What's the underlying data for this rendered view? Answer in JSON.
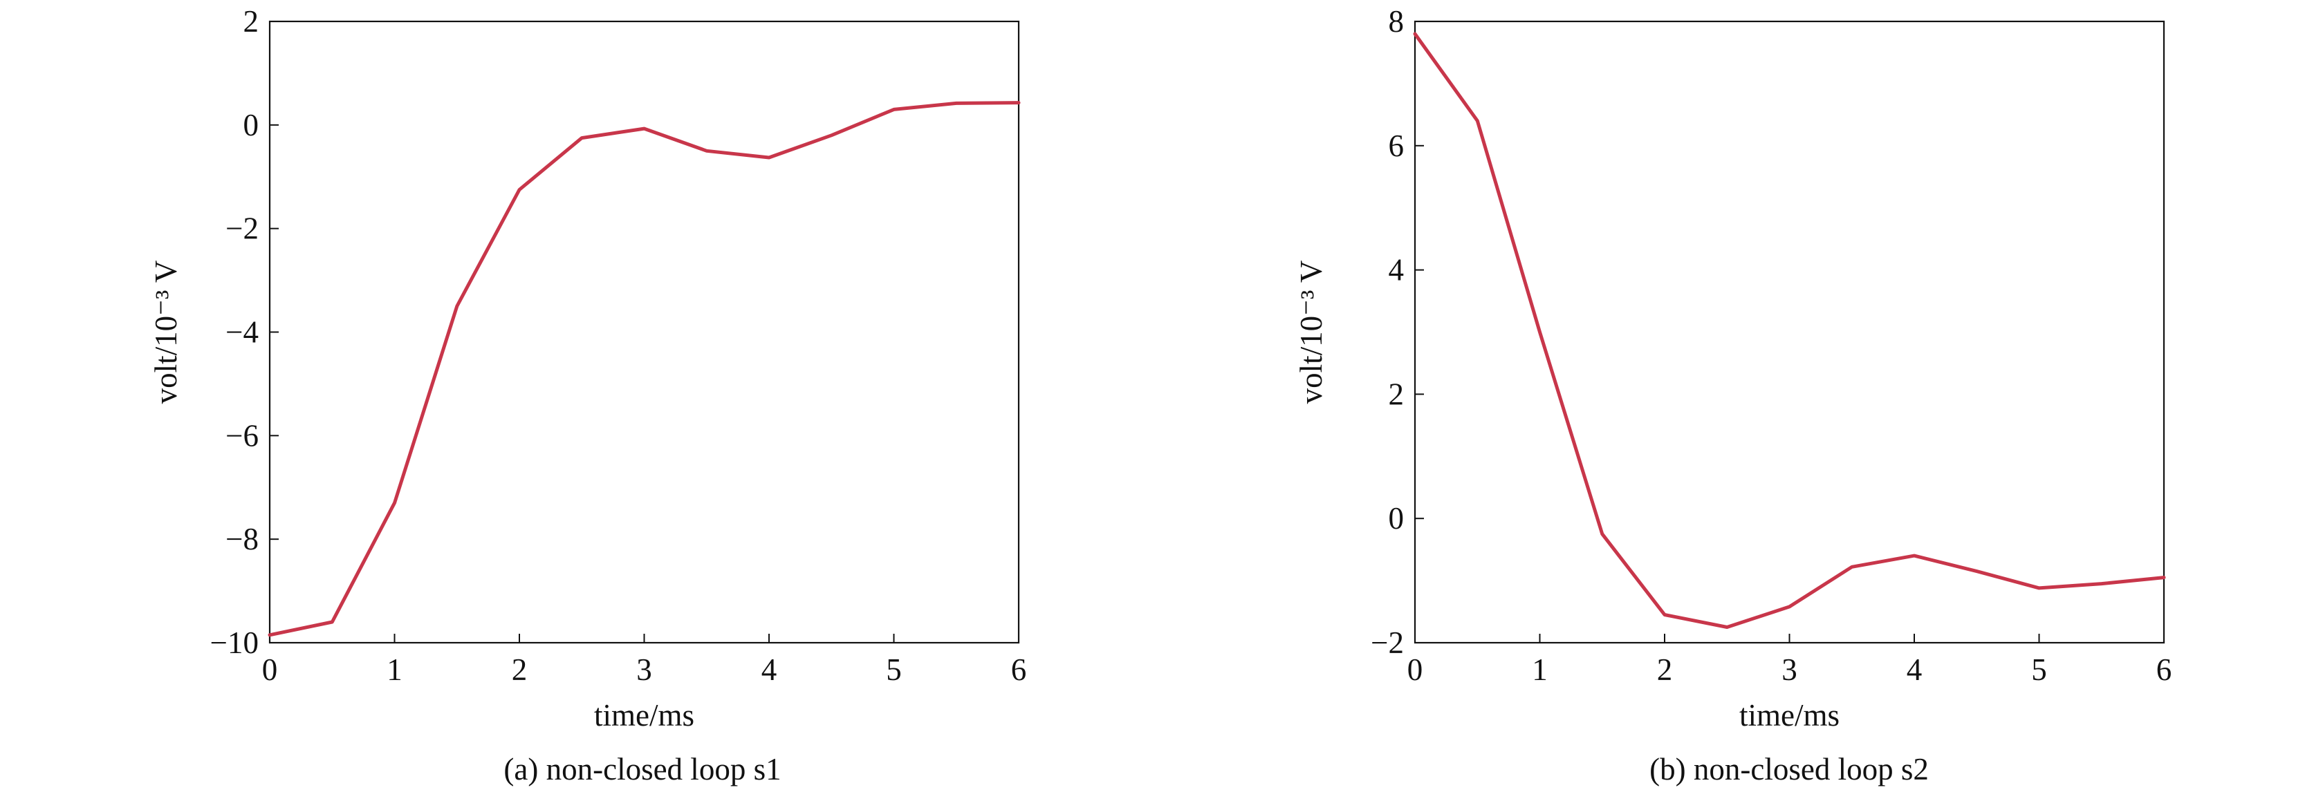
{
  "chart_data": [
    {
      "type": "line",
      "caption": "(a) non-closed loop s1",
      "xlabel": "time/ms",
      "ylabel": "volt/10⁻³ V",
      "xlim": [
        0,
        6
      ],
      "ylim": [
        -10,
        2
      ],
      "xticks": [
        0,
        1,
        2,
        3,
        4,
        5,
        6
      ],
      "yticks": [
        -10,
        -8,
        -6,
        -4,
        -2,
        0,
        2
      ],
      "xtick_labels": [
        "0",
        "1",
        "2",
        "3",
        "4",
        "5",
        "6"
      ],
      "ytick_labels": [
        "−10",
        "−8",
        "−6",
        "−4",
        "−2",
        "0",
        "2"
      ],
      "grid": false,
      "series": [
        {
          "color": "#c8364a",
          "x": [
            0,
            0.5,
            1,
            1.5,
            2,
            2.5,
            3,
            3.5,
            4,
            4.5,
            5,
            5.5,
            6
          ],
          "y": [
            -9.85,
            -9.6,
            -7.3,
            -3.5,
            -1.25,
            -0.25,
            -0.07,
            -0.5,
            -0.63,
            -0.2,
            0.3,
            0.42,
            0.43
          ]
        }
      ]
    },
    {
      "type": "line",
      "caption": "(b) non-closed loop s2",
      "xlabel": "time/ms",
      "ylabel": "volt/10⁻³ V",
      "xlim": [
        0,
        6
      ],
      "ylim": [
        -2,
        8
      ],
      "xticks": [
        0,
        1,
        2,
        3,
        4,
        5,
        6
      ],
      "yticks": [
        -2,
        0,
        2,
        4,
        6,
        8
      ],
      "xtick_labels": [
        "0",
        "1",
        "2",
        "3",
        "4",
        "5",
        "6"
      ],
      "ytick_labels": [
        "−2",
        "0",
        "2",
        "4",
        "6",
        "8"
      ],
      "grid": false,
      "series": [
        {
          "color": "#c8364a",
          "x": [
            0,
            0.5,
            1,
            1.5,
            2,
            2.5,
            3,
            3.5,
            4,
            4.5,
            5,
            5.5,
            6
          ],
          "y": [
            7.8,
            6.4,
            3.0,
            -0.25,
            -1.55,
            -1.75,
            -1.42,
            -0.78,
            -0.6,
            -0.85,
            -1.12,
            -1.05,
            -0.95
          ]
        }
      ]
    }
  ]
}
